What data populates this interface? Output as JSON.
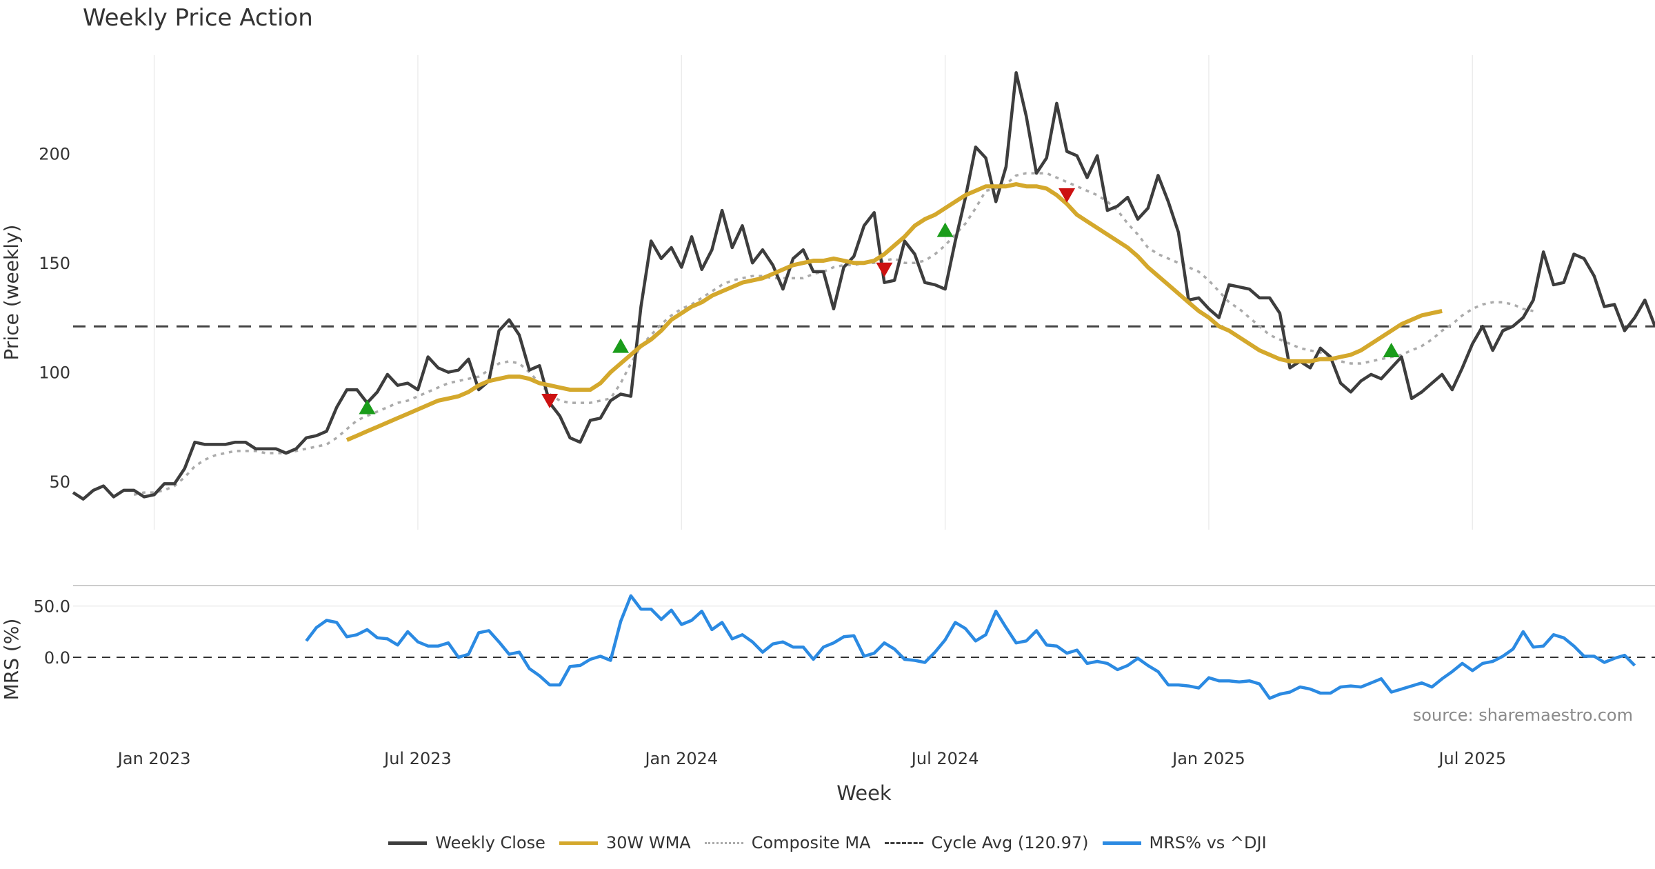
{
  "chart_data": {
    "type": "line",
    "title": "Weekly Price Action",
    "xlabel": "Week",
    "x_ticks": [
      "Jan 2023",
      "Jul 2023",
      "Jan 2024",
      "Jul 2024",
      "Jan 2025",
      "Jul 2025"
    ],
    "weeks_total": 156,
    "weeks_to_first_tick": 8,
    "weeks_per_tick": 26,
    "price_panel": {
      "ylabel": "Price (weekly)",
      "ylim": [
        28,
        245
      ],
      "yticks": [
        50,
        100,
        150,
        200
      ],
      "cycle_avg": 120.97,
      "series": [
        {
          "name": "Weekly Close",
          "color": "#3d3d3d",
          "values": [
            45,
            42,
            46,
            48,
            43,
            46,
            46,
            43,
            44,
            49,
            49,
            56,
            68,
            67,
            67,
            67,
            68,
            68,
            65,
            65,
            65,
            63,
            65,
            70,
            71,
            73,
            84,
            92,
            92,
            86,
            91,
            99,
            94,
            95,
            92,
            107,
            102,
            100,
            101,
            106,
            92,
            96,
            119,
            124,
            117,
            101,
            103,
            86,
            80,
            70,
            68,
            78,
            79,
            87,
            90,
            89,
            130,
            160,
            152,
            157,
            148,
            162,
            147,
            156,
            174,
            157,
            167,
            150,
            156,
            149,
            138,
            152,
            156,
            146,
            146,
            129,
            148,
            153,
            167,
            173,
            141,
            142,
            160,
            154,
            141,
            140,
            138,
            160,
            180,
            203,
            198,
            178,
            194,
            237,
            217,
            191,
            198,
            223,
            201,
            199,
            189,
            199,
            174,
            176,
            180,
            170,
            175,
            190,
            178,
            164,
            133,
            134,
            129,
            125,
            140,
            139,
            138,
            134,
            134,
            127,
            102,
            105,
            102,
            111,
            107,
            95,
            91,
            96,
            99,
            97,
            102,
            107,
            88,
            91,
            95,
            99,
            92,
            102,
            113,
            121,
            110,
            119,
            121,
            125,
            133,
            155,
            140,
            141,
            154,
            152,
            144,
            130,
            131,
            119,
            125,
            133,
            121
          ]
        },
        {
          "name": "30W WMA",
          "color": "#d4a82c",
          "start": 27,
          "values": [
            69,
            71,
            73,
            75,
            77,
            79,
            81,
            83,
            85,
            87,
            88,
            89,
            91,
            94,
            96,
            97,
            98,
            98,
            97,
            95,
            94,
            93,
            92,
            92,
            92,
            95,
            100,
            104,
            108,
            112,
            115,
            119,
            124,
            127,
            130,
            132,
            135,
            137,
            139,
            141,
            142,
            143,
            145,
            147,
            149,
            150,
            151,
            151,
            152,
            151,
            150,
            150,
            151,
            154,
            158,
            162,
            167,
            170,
            172,
            175,
            178,
            181,
            183,
            185,
            185,
            185,
            186,
            185,
            185,
            184,
            181,
            177,
            172,
            169,
            166,
            163,
            160,
            157,
            153,
            148,
            144,
            140,
            136,
            132,
            128,
            125,
            121,
            119,
            116,
            113,
            110,
            108,
            106,
            105,
            105,
            105,
            106,
            106,
            107,
            108,
            110,
            113,
            116,
            119,
            122,
            124,
            126,
            127,
            128
          ]
        },
        {
          "name": "Composite MA",
          "color": "#ababab",
          "start": 6,
          "values": [
            44,
            45,
            45,
            46,
            48,
            52,
            57,
            60,
            62,
            63,
            64,
            64,
            64,
            63,
            63,
            63,
            64,
            65,
            66,
            67,
            70,
            74,
            78,
            80,
            82,
            84,
            86,
            87,
            89,
            91,
            93,
            95,
            96,
            97,
            98,
            101,
            104,
            105,
            104,
            100,
            95,
            90,
            87,
            86,
            86,
            86,
            87,
            88,
            95,
            104,
            112,
            117,
            122,
            126,
            129,
            131,
            134,
            137,
            140,
            142,
            143,
            144,
            144,
            143,
            143,
            143,
            143,
            145,
            146,
            148,
            149,
            149,
            150,
            150,
            151,
            152,
            150,
            150,
            151,
            154,
            158,
            163,
            168,
            175,
            183,
            184,
            186,
            190,
            191,
            191,
            191,
            189,
            187,
            185,
            183,
            181,
            178,
            174,
            168,
            163,
            157,
            154,
            152,
            150,
            148,
            146,
            142,
            137,
            132,
            129,
            125,
            121,
            117,
            115,
            113,
            111,
            110,
            109,
            107,
            105,
            104,
            104,
            105,
            106,
            107,
            108,
            110,
            112,
            115,
            119,
            122,
            126,
            129,
            131,
            132,
            132,
            131,
            129,
            128
          ]
        }
      ],
      "buy_signals": [
        {
          "week": 29,
          "price": 84
        },
        {
          "week": 54,
          "price": 112
        },
        {
          "week": 86,
          "price": 165
        },
        {
          "week": 130,
          "price": 110
        }
      ],
      "sell_signals": [
        {
          "week": 47,
          "price": 87
        },
        {
          "week": 80,
          "price": 147
        },
        {
          "week": 98,
          "price": 181
        }
      ]
    },
    "mrs_panel": {
      "ylabel": "MRS (%)",
      "ylim": [
        -72,
        68
      ],
      "yticks": [
        50.0,
        0.0
      ],
      "ytick_labels": [
        "50.0",
        "0.0"
      ],
      "series": [
        {
          "name": "MRS% vs ^DJI",
          "color": "#2b8ae2",
          "start": 23,
          "values": [
            16,
            29,
            36,
            34,
            20,
            22,
            27,
            19,
            18,
            12,
            25,
            15,
            11,
            11,
            14,
            0,
            3,
            24,
            26,
            15,
            3,
            5,
            -11,
            -18,
            -27,
            -27,
            -9,
            -8,
            -2,
            1,
            -3,
            35,
            60,
            47,
            47,
            37,
            46,
            32,
            36,
            45,
            27,
            34,
            18,
            22,
            15,
            5,
            13,
            15,
            10,
            10,
            -2,
            10,
            14,
            20,
            21,
            1,
            4,
            14,
            8,
            -2,
            -3,
            -5,
            5,
            17,
            34,
            28,
            16,
            22,
            45,
            29,
            14,
            16,
            26,
            12,
            11,
            4,
            7,
            -6,
            -4,
            -6,
            -12,
            -8,
            -1,
            -8,
            -14,
            -27,
            -27,
            -28,
            -30,
            -20,
            -23,
            -23,
            -24,
            -23,
            -26,
            -40,
            -36,
            -34,
            -29,
            -31,
            -35,
            -35,
            -29,
            -28,
            -29,
            -25,
            -21,
            -34,
            -31,
            -28,
            -25,
            -29,
            -21,
            -14,
            -6,
            -13,
            -6,
            -4,
            1,
            8,
            25,
            10,
            11,
            22,
            19,
            11,
            1,
            1,
            -5,
            -1,
            2,
            -8
          ]
        }
      ]
    },
    "legend": [
      {
        "label": "Weekly Close",
        "color": "#3d3d3d",
        "style": "solid"
      },
      {
        "label": "30W WMA",
        "color": "#d4a82c",
        "style": "solid"
      },
      {
        "label": "Composite MA",
        "color": "#ababab",
        "style": "dotted"
      },
      {
        "label": "Cycle Avg (120.97)",
        "color": "#3d3d3d",
        "style": "dashed"
      },
      {
        "label": "MRS% vs ^DJI",
        "color": "#2b8ae2",
        "style": "solid"
      }
    ],
    "annotation": "source: sharemaestro.com"
  }
}
